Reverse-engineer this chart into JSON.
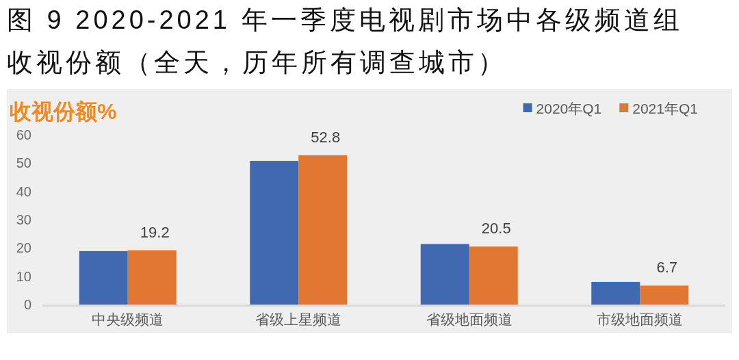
{
  "chart_data": {
    "type": "bar",
    "title": "图 9 2020-2021 年一季度电视剧市场中各级频道组收视份额（全天，历年所有调查城市）",
    "ylabel": "收视份额%",
    "categories": [
      "中央级频道",
      "省级上星频道",
      "省级地面频道",
      "市级地面频道"
    ],
    "series": [
      {
        "name": "2020年Q1",
        "color": "#4169b1",
        "values": [
          18.9,
          50.8,
          21.4,
          8.0
        ]
      },
      {
        "name": "2021年Q1",
        "color": "#e07732",
        "values": [
          19.2,
          52.8,
          20.5,
          6.7
        ],
        "value_labels": [
          "19.2",
          "52.8",
          "20.5",
          "6.7"
        ]
      }
    ],
    "ylim": [
      0,
      60
    ],
    "yticks": [
      0,
      10,
      20,
      30,
      40,
      50,
      60
    ],
    "legend": "top right"
  }
}
